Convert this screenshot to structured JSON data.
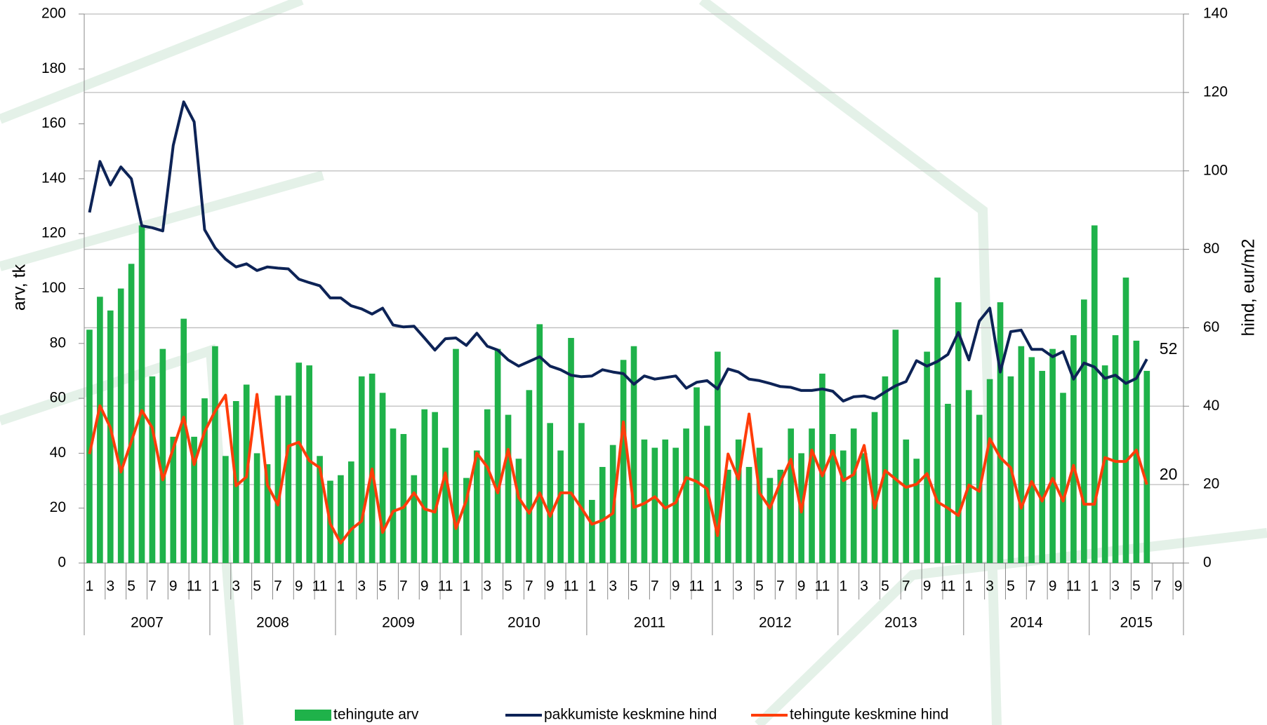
{
  "chart_data": {
    "type": "bar-line",
    "ylabel": "arv, tk",
    "y2label": "hind, eur/m2",
    "ylim": [
      0,
      200
    ],
    "yticks": [
      0,
      20,
      40,
      60,
      80,
      100,
      120,
      140,
      160,
      180,
      200
    ],
    "y2lim": [
      0,
      140
    ],
    "y2ticks": [
      0,
      20,
      40,
      60,
      80,
      100,
      120,
      140
    ],
    "grid": "y2",
    "legend": "bottom",
    "data_labels": "last",
    "years": [
      "2007",
      "2008",
      "2009",
      "2010",
      "2011",
      "2012",
      "2013",
      "2014",
      "2015"
    ],
    "categories": [
      "1",
      null,
      "3",
      null,
      "5",
      null,
      "7",
      null,
      "9",
      null,
      "11",
      null,
      "1",
      null,
      "3",
      null,
      "5",
      null,
      "7",
      null,
      "9",
      null,
      "11",
      null,
      "1",
      null,
      "3",
      null,
      "5",
      null,
      "7",
      null,
      "9",
      null,
      "11",
      null,
      "1",
      null,
      "3",
      null,
      "5",
      null,
      "7",
      null,
      "9",
      null,
      "11",
      null,
      "1",
      null,
      "3",
      null,
      "5",
      null,
      "7",
      null,
      "9",
      null,
      "11",
      null,
      "1",
      null,
      "3",
      null,
      "5",
      null,
      "7",
      null,
      "9",
      null,
      "11",
      null,
      "1",
      null,
      "3",
      null,
      "5",
      null,
      "7",
      null,
      "9",
      null,
      "11",
      null,
      "1",
      null,
      "3",
      null,
      "5",
      null,
      "7",
      null,
      "9",
      null,
      "11",
      null,
      "1",
      null,
      "3",
      null,
      "5",
      null,
      "7",
      null,
      "9"
    ],
    "series": [
      {
        "name": "tehingute arv",
        "type": "bar",
        "axis": "y",
        "color": "#1fb24a",
        "values": [
          85,
          97,
          92,
          100,
          109,
          123,
          68,
          78,
          46,
          89,
          46,
          60,
          79,
          39,
          59,
          65,
          40,
          36,
          61,
          61,
          73,
          72,
          39,
          30,
          32,
          37,
          68,
          69,
          62,
          49,
          47,
          32,
          56,
          55,
          42,
          78,
          31,
          41,
          56,
          78,
          54,
          38,
          63,
          87,
          51,
          41,
          82,
          51,
          23,
          35,
          43,
          74,
          79,
          45,
          42,
          45,
          42,
          49,
          64,
          50,
          77,
          34,
          45,
          35,
          42,
          31,
          34,
          49,
          40,
          49,
          69,
          47,
          41,
          49,
          40,
          55,
          68,
          85,
          45,
          38,
          77,
          104,
          58,
          95,
          63,
          54,
          67,
          95,
          68,
          79,
          75,
          70,
          78,
          62,
          83,
          96,
          123,
          72,
          83,
          104,
          81,
          70,
          null,
          null,
          null
        ]
      },
      {
        "name": "pakkumiste keskmine hind",
        "type": "line",
        "axis": "y2",
        "color": "#0d2356",
        "values": [
          89.4,
          102.4,
          96.4,
          101,
          98,
          86,
          85.5,
          84.7,
          106.5,
          117.6,
          112.5,
          85,
          80.4,
          77.5,
          75.5,
          76.3,
          74.6,
          75.5,
          75.2,
          75,
          72.4,
          71.5,
          70.7,
          67.6,
          67.6,
          65.6,
          64.8,
          63.5,
          65,
          60.7,
          60.2,
          60.4,
          57.4,
          54.3,
          57.2,
          57.4,
          55.5,
          58.6,
          55.3,
          54.3,
          51.8,
          50.2,
          51.4,
          52.6,
          50.2,
          49.3,
          47.9,
          47.5,
          47.7,
          49.3,
          48.7,
          48.3,
          45.6,
          47.7,
          46.9,
          47.3,
          47.7,
          44.6,
          46.1,
          46.5,
          44.4,
          49.5,
          48.7,
          46.9,
          46.5,
          45.8,
          45,
          44.8,
          44,
          44,
          44.4,
          43.8,
          41.3,
          42.4,
          42.6,
          41.9,
          43.6,
          45.2,
          46.3,
          51.6,
          50.2,
          51.4,
          53.2,
          58.8,
          51.8,
          61.7,
          65,
          48.7,
          59,
          59.4,
          54.5,
          54.5,
          52.6,
          53.9,
          46.9,
          51,
          50,
          47.1,
          47.9,
          45.8,
          47.1,
          52,
          null,
          null,
          null
        ]
      },
      {
        "name": "tehingute keskmine hind",
        "type": "line",
        "axis": "y2",
        "color": "#ff3d0a",
        "values": [
          27.8,
          40.1,
          34.5,
          23.2,
          31,
          38.9,
          34.5,
          21.2,
          29.2,
          37.2,
          25.1,
          33.5,
          38.7,
          42.8,
          19.7,
          22,
          43,
          19.9,
          14.8,
          29.8,
          30.8,
          26.1,
          24.3,
          10,
          5.1,
          8.6,
          10.7,
          24,
          7.8,
          13.2,
          14.2,
          17.9,
          13.8,
          13,
          23,
          8.8,
          16,
          28,
          24.5,
          17.9,
          29,
          16.7,
          12.7,
          17.9,
          11.9,
          17.9,
          17.9,
          14,
          9.9,
          10.9,
          12.7,
          36,
          14.2,
          15.2,
          16.9,
          14,
          15.4,
          21.8,
          20.8,
          18.9,
          7,
          27.8,
          21.4,
          38,
          17.9,
          14,
          20.6,
          26.5,
          13,
          28.8,
          22.2,
          28.6,
          21,
          22.6,
          30,
          14,
          23.6,
          21.4,
          19.3,
          20.1,
          22.8,
          15.6,
          14,
          12.1,
          19.9,
          18.3,
          31.7,
          26.9,
          24.3,
          14,
          20.8,
          15.8,
          21.6,
          15.8,
          24.9,
          15,
          15,
          26.9,
          25.9,
          25.9,
          28.8,
          20,
          null,
          null,
          null
        ]
      }
    ]
  }
}
